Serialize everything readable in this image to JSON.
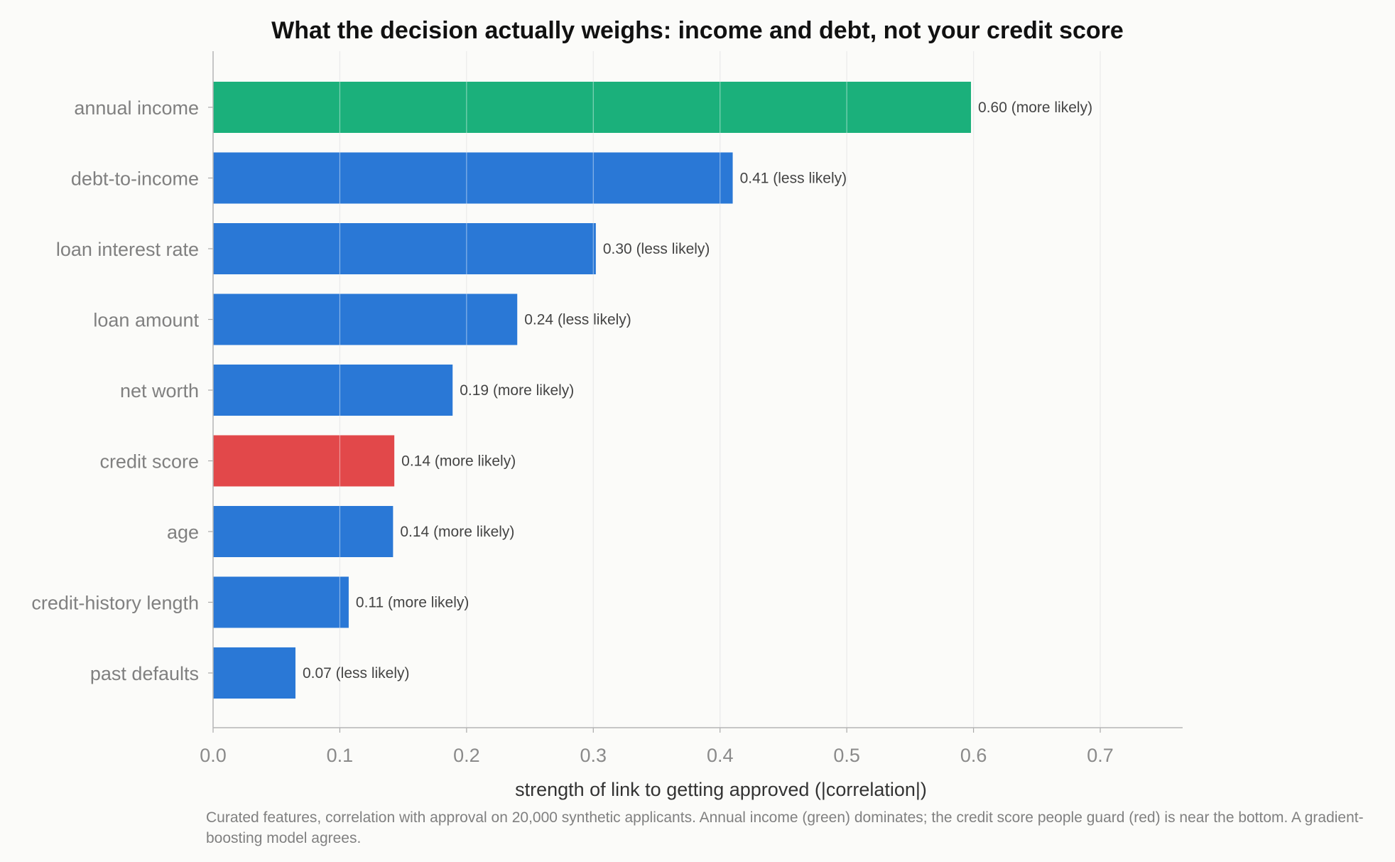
{
  "chart_data": {
    "type": "bar",
    "orientation": "horizontal",
    "title": "What the decision actually weighs: income and debt, not your credit score",
    "xlabel": "strength of link to getting approved (|correlation|)",
    "ylabel": "",
    "xlim": [
      0,
      0.765
    ],
    "xticks": [
      "0.0",
      "0.1",
      "0.2",
      "0.3",
      "0.4",
      "0.5",
      "0.6",
      "0.7"
    ],
    "grid": "vertical",
    "categories": [
      "annual income",
      "debt-to-income",
      "loan interest rate",
      "loan amount",
      "net worth",
      "credit score",
      "age",
      "credit-history length",
      "past defaults"
    ],
    "values": [
      0.598,
      0.41,
      0.302,
      0.24,
      0.189,
      0.143,
      0.142,
      0.107,
      0.065
    ],
    "value_labels": [
      "0.60",
      "0.41",
      "0.30",
      "0.24",
      "0.19",
      "0.14",
      "0.14",
      "0.11",
      "0.07"
    ],
    "directions": [
      "(more likely)",
      "(less likely)",
      "(less likely)",
      "(less likely)",
      "(more likely)",
      "(more likely)",
      "(more likely)",
      "(more likely)",
      "(less likely)"
    ],
    "colors": [
      "#1bb07b",
      "#2a78d6",
      "#2a78d6",
      "#2a78d6",
      "#2a78d6",
      "#e2484a",
      "#2a78d6",
      "#2a78d6",
      "#2a78d6"
    ]
  },
  "caption": "Curated features, correlation with approval on 20,000 synthetic applicants. Annual income (green) dominates; the credit score people guard (red) is near the bottom. A gradient-boosting model agrees."
}
